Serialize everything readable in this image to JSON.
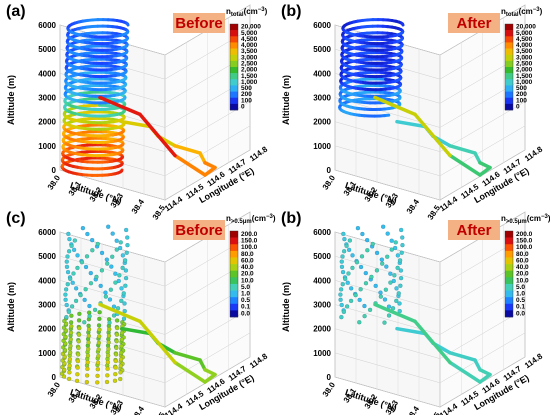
{
  "colors": {
    "badge_bg": "#f4b183",
    "badge_text": "#c00000",
    "scale": [
      "#0a0aa0",
      "#1a3cff",
      "#1e90ff",
      "#3cc8e8",
      "#46d2a0",
      "#2eb82e",
      "#8cd020",
      "#d4d000",
      "#ffb000",
      "#ff6000",
      "#e01010",
      "#a00000"
    ]
  },
  "total_colorbar": {
    "title_main": "n",
    "title_sub": "total",
    "title_unit": "(cm",
    "title_exp": "−3",
    "title_close": ")",
    "ticks": [
      "20,000",
      "5,000",
      "4,500",
      "4,000",
      "3,500",
      "3,000",
      "2,500",
      "2,000",
      "1,500",
      "1,000",
      "500",
      "200",
      "100",
      "0"
    ]
  },
  "coarse_colorbar": {
    "title_main": "n",
    "title_sub": ">0.5μm",
    "title_unit": "(cm",
    "title_exp": "−3",
    "title_close": ")",
    "ticks": [
      "200.0",
      "150.0",
      "100.0",
      "80.0",
      "60.0",
      "40.0",
      "20.0",
      "10.0",
      "5.0",
      "1.0",
      "0.5",
      "0.1",
      "0.0"
    ]
  },
  "chart_data": [
    {
      "type": "scatter",
      "panel_label": "(a)",
      "badge": "Before",
      "variable": "n_total",
      "zlabel": "Altitude (m)",
      "xlabel": "Latitude (°N)",
      "ylabel": "Longitude (°E)",
      "z_ticks": [
        "0",
        "1000",
        "2000",
        "3000",
        "4000",
        "5000",
        "6000"
      ],
      "x_ticks": [
        "38.0",
        "38.1",
        "38.2",
        "38.3",
        "38.4",
        "38.5"
      ],
      "y_ticks": [
        "114.4",
        "114.5",
        "114.6",
        "114.7",
        "114.8"
      ],
      "zlim": [
        0,
        6000
      ],
      "profile": [
        {
          "z_range": [
            0,
            800
          ],
          "level": 0.85
        },
        {
          "z_range": [
            800,
            1800
          ],
          "level": 0.75
        },
        {
          "z_range": [
            1800,
            2400
          ],
          "level": 0.62
        },
        {
          "z_range": [
            2400,
            3000
          ],
          "level": 0.35
        },
        {
          "z_range": [
            3000,
            4000
          ],
          "level": 0.2
        },
        {
          "z_range": [
            4000,
            6000
          ],
          "level": 0.14
        }
      ],
      "tail_levels": [
        0.65,
        0.72,
        0.78,
        0.9
      ]
    },
    {
      "type": "scatter",
      "panel_label": "(b)",
      "badge": "After",
      "variable": "n_total",
      "zlabel": "Altitude (m)",
      "xlabel": "Latitude (°N)",
      "ylabel": "Longitude (°E)",
      "z_ticks": [
        "0",
        "1000",
        "2000",
        "3000",
        "4000",
        "5000",
        "6000"
      ],
      "x_ticks": [
        "38.0",
        "38.1",
        "38.2",
        "38.3",
        "38.4",
        "38.5"
      ],
      "y_ticks": [
        "114.4",
        "114.5",
        "114.6",
        "114.7",
        "114.8"
      ],
      "zlim": [
        0,
        6000
      ],
      "profile": [
        {
          "z_range": [
            2500,
            3500
          ],
          "level": 0.18
        },
        {
          "z_range": [
            3500,
            6000
          ],
          "level": 0.08
        }
      ],
      "tail_levels": [
        0.3,
        0.34,
        0.4,
        0.62
      ]
    },
    {
      "type": "scatter",
      "panel_label": "(c)",
      "badge": "Before",
      "variable": "n_>0.5um",
      "zlabel": "Altitude (m)",
      "xlabel": "Latitude (°N)",
      "ylabel": "Longitude (°E)",
      "z_ticks": [
        "0",
        "1000",
        "2000",
        "3000",
        "4000",
        "5000",
        "6000"
      ],
      "x_ticks": [
        "38.0",
        "38.1",
        "38.2",
        "38.3",
        "38.4",
        "38.5"
      ],
      "y_ticks": [
        "114.4",
        "114.5",
        "114.6",
        "114.7",
        "114.8"
      ],
      "zlim": [
        0,
        6000
      ],
      "profile": [
        {
          "z_range": [
            0,
            1000
          ],
          "level": 0.6
        },
        {
          "z_range": [
            1000,
            2400
          ],
          "level": 0.55
        },
        {
          "z_range": [
            2400,
            6000
          ],
          "level": 0.3
        }
      ],
      "tail_levels": [
        0.45,
        0.5,
        0.55,
        0.62
      ]
    },
    {
      "type": "scatter",
      "panel_label": "(b)",
      "badge": "After",
      "variable": "n_>0.5um",
      "zlabel": "Altitude (m)",
      "xlabel": "Latitude (°N)",
      "ylabel": "Longitude (°E)",
      "z_ticks": [
        "0",
        "1000",
        "2000",
        "3000",
        "4000",
        "5000",
        "6000"
      ],
      "x_ticks": [
        "38.0",
        "38.1",
        "38.2",
        "38.3",
        "38.4",
        "38.5"
      ],
      "y_ticks": [
        "114.4",
        "114.5",
        "114.6",
        "114.7",
        "114.8"
      ],
      "zlim": [
        0,
        6000
      ],
      "profile": [
        {
          "z_range": [
            2500,
            6000
          ],
          "level": 0.3
        }
      ],
      "tail_levels": [
        0.3,
        0.32,
        0.34,
        0.38
      ]
    }
  ]
}
